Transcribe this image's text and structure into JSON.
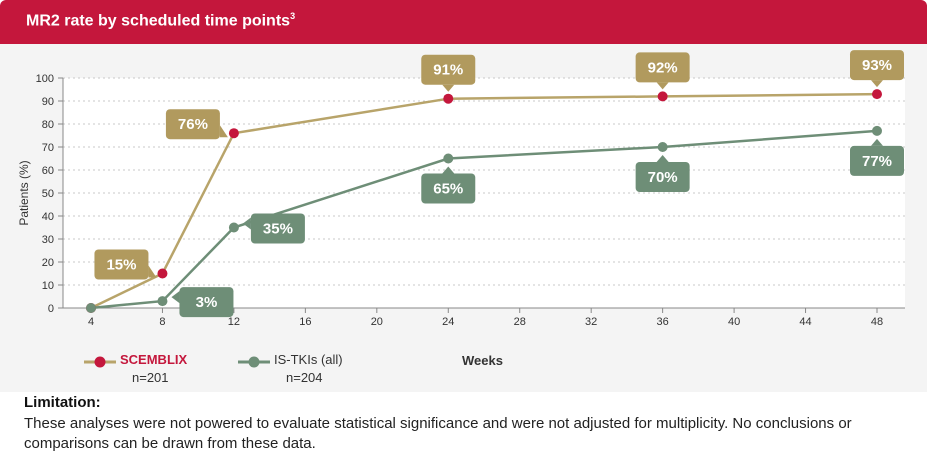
{
  "header": {
    "title": "MR2 rate by scheduled time points",
    "title_sup": "3"
  },
  "chart_data": {
    "type": "line",
    "title": "MR2 rate by scheduled time points",
    "xlabel": "Weeks",
    "ylabel": "Patients (%)",
    "xlim": [
      4,
      48
    ],
    "ylim": [
      0,
      100
    ],
    "xticks": [
      4,
      8,
      12,
      16,
      20,
      24,
      28,
      32,
      36,
      40,
      44,
      48
    ],
    "yticks": [
      0,
      10,
      20,
      30,
      40,
      50,
      60,
      70,
      80,
      90,
      100
    ],
    "grid": "horizontal-dashed",
    "series": [
      {
        "name": "SCEMBLIX",
        "n_label": "n=201",
        "line_color": "#b8a46a",
        "marker_color": "#c4173c",
        "label_color": "#b19a5e",
        "x": [
          4,
          8,
          12,
          24,
          36,
          48
        ],
        "values": [
          0,
          15,
          76,
          91,
          92,
          93
        ],
        "point_labels": [
          "",
          "15%",
          "76%",
          "91%",
          "92%",
          "93%"
        ]
      },
      {
        "name": "IS-TKIs (all)",
        "n_label": "n=204",
        "line_color": "#6e8e77",
        "marker_color": "#6e8e77",
        "label_color": "#6e8e77",
        "x": [
          4,
          8,
          12,
          24,
          36,
          48
        ],
        "values": [
          0,
          3,
          35,
          65,
          70,
          77
        ],
        "point_labels": [
          "",
          "3%",
          "35%",
          "65%",
          "70%",
          "77%"
        ]
      }
    ]
  },
  "limitation": {
    "title": "Limitation:",
    "text": "These analyses were not powered to evaluate statistical significance and were not adjusted for multiplicity. No conclusions or comparisons can be drawn from these data."
  }
}
